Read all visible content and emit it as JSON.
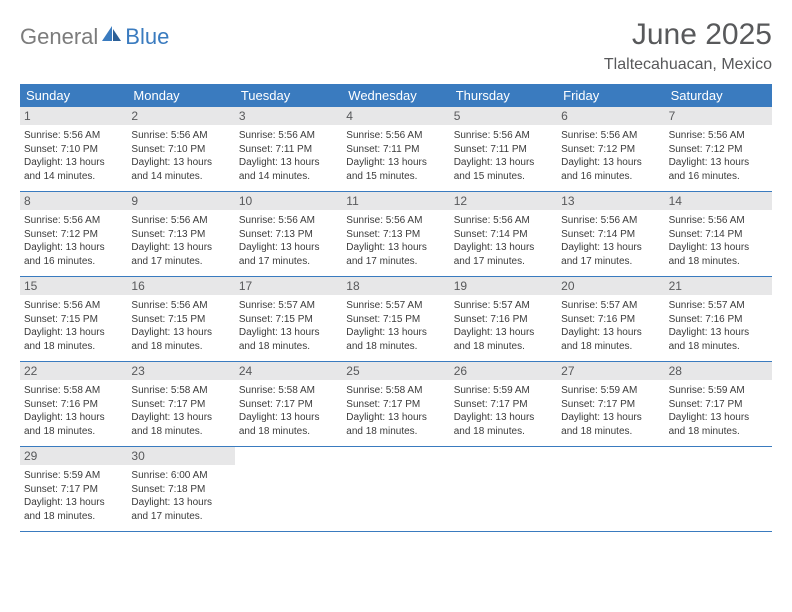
{
  "brand": {
    "part1": "General",
    "part2": "Blue"
  },
  "title": "June 2025",
  "location": "Tlaltecahuacan, Mexico",
  "header_bg": "#3a7bbf",
  "header_fg": "#ffffff",
  "daynum_bg": "#e7e7e8",
  "daynum_fg": "#58595b",
  "border_color": "#3a7bbf",
  "text_color": "#3b3b3b",
  "days_of_week": [
    "Sunday",
    "Monday",
    "Tuesday",
    "Wednesday",
    "Thursday",
    "Friday",
    "Saturday"
  ],
  "weeks": [
    [
      {
        "n": 1,
        "sr": "5:56 AM",
        "ss": "7:10 PM",
        "dl": "13 hours and 14 minutes."
      },
      {
        "n": 2,
        "sr": "5:56 AM",
        "ss": "7:10 PM",
        "dl": "13 hours and 14 minutes."
      },
      {
        "n": 3,
        "sr": "5:56 AM",
        "ss": "7:11 PM",
        "dl": "13 hours and 14 minutes."
      },
      {
        "n": 4,
        "sr": "5:56 AM",
        "ss": "7:11 PM",
        "dl": "13 hours and 15 minutes."
      },
      {
        "n": 5,
        "sr": "5:56 AM",
        "ss": "7:11 PM",
        "dl": "13 hours and 15 minutes."
      },
      {
        "n": 6,
        "sr": "5:56 AM",
        "ss": "7:12 PM",
        "dl": "13 hours and 16 minutes."
      },
      {
        "n": 7,
        "sr": "5:56 AM",
        "ss": "7:12 PM",
        "dl": "13 hours and 16 minutes."
      }
    ],
    [
      {
        "n": 8,
        "sr": "5:56 AM",
        "ss": "7:12 PM",
        "dl": "13 hours and 16 minutes."
      },
      {
        "n": 9,
        "sr": "5:56 AM",
        "ss": "7:13 PM",
        "dl": "13 hours and 17 minutes."
      },
      {
        "n": 10,
        "sr": "5:56 AM",
        "ss": "7:13 PM",
        "dl": "13 hours and 17 minutes."
      },
      {
        "n": 11,
        "sr": "5:56 AM",
        "ss": "7:13 PM",
        "dl": "13 hours and 17 minutes."
      },
      {
        "n": 12,
        "sr": "5:56 AM",
        "ss": "7:14 PM",
        "dl": "13 hours and 17 minutes."
      },
      {
        "n": 13,
        "sr": "5:56 AM",
        "ss": "7:14 PM",
        "dl": "13 hours and 17 minutes."
      },
      {
        "n": 14,
        "sr": "5:56 AM",
        "ss": "7:14 PM",
        "dl": "13 hours and 18 minutes."
      }
    ],
    [
      {
        "n": 15,
        "sr": "5:56 AM",
        "ss": "7:15 PM",
        "dl": "13 hours and 18 minutes."
      },
      {
        "n": 16,
        "sr": "5:56 AM",
        "ss": "7:15 PM",
        "dl": "13 hours and 18 minutes."
      },
      {
        "n": 17,
        "sr": "5:57 AM",
        "ss": "7:15 PM",
        "dl": "13 hours and 18 minutes."
      },
      {
        "n": 18,
        "sr": "5:57 AM",
        "ss": "7:15 PM",
        "dl": "13 hours and 18 minutes."
      },
      {
        "n": 19,
        "sr": "5:57 AM",
        "ss": "7:16 PM",
        "dl": "13 hours and 18 minutes."
      },
      {
        "n": 20,
        "sr": "5:57 AM",
        "ss": "7:16 PM",
        "dl": "13 hours and 18 minutes."
      },
      {
        "n": 21,
        "sr": "5:57 AM",
        "ss": "7:16 PM",
        "dl": "13 hours and 18 minutes."
      }
    ],
    [
      {
        "n": 22,
        "sr": "5:58 AM",
        "ss": "7:16 PM",
        "dl": "13 hours and 18 minutes."
      },
      {
        "n": 23,
        "sr": "5:58 AM",
        "ss": "7:17 PM",
        "dl": "13 hours and 18 minutes."
      },
      {
        "n": 24,
        "sr": "5:58 AM",
        "ss": "7:17 PM",
        "dl": "13 hours and 18 minutes."
      },
      {
        "n": 25,
        "sr": "5:58 AM",
        "ss": "7:17 PM",
        "dl": "13 hours and 18 minutes."
      },
      {
        "n": 26,
        "sr": "5:59 AM",
        "ss": "7:17 PM",
        "dl": "13 hours and 18 minutes."
      },
      {
        "n": 27,
        "sr": "5:59 AM",
        "ss": "7:17 PM",
        "dl": "13 hours and 18 minutes."
      },
      {
        "n": 28,
        "sr": "5:59 AM",
        "ss": "7:17 PM",
        "dl": "13 hours and 18 minutes."
      }
    ],
    [
      {
        "n": 29,
        "sr": "5:59 AM",
        "ss": "7:17 PM",
        "dl": "13 hours and 18 minutes."
      },
      {
        "n": 30,
        "sr": "6:00 AM",
        "ss": "7:18 PM",
        "dl": "13 hours and 17 minutes."
      },
      null,
      null,
      null,
      null,
      null
    ]
  ],
  "labels": {
    "sunrise": "Sunrise:",
    "sunset": "Sunset:",
    "daylight": "Daylight:"
  }
}
